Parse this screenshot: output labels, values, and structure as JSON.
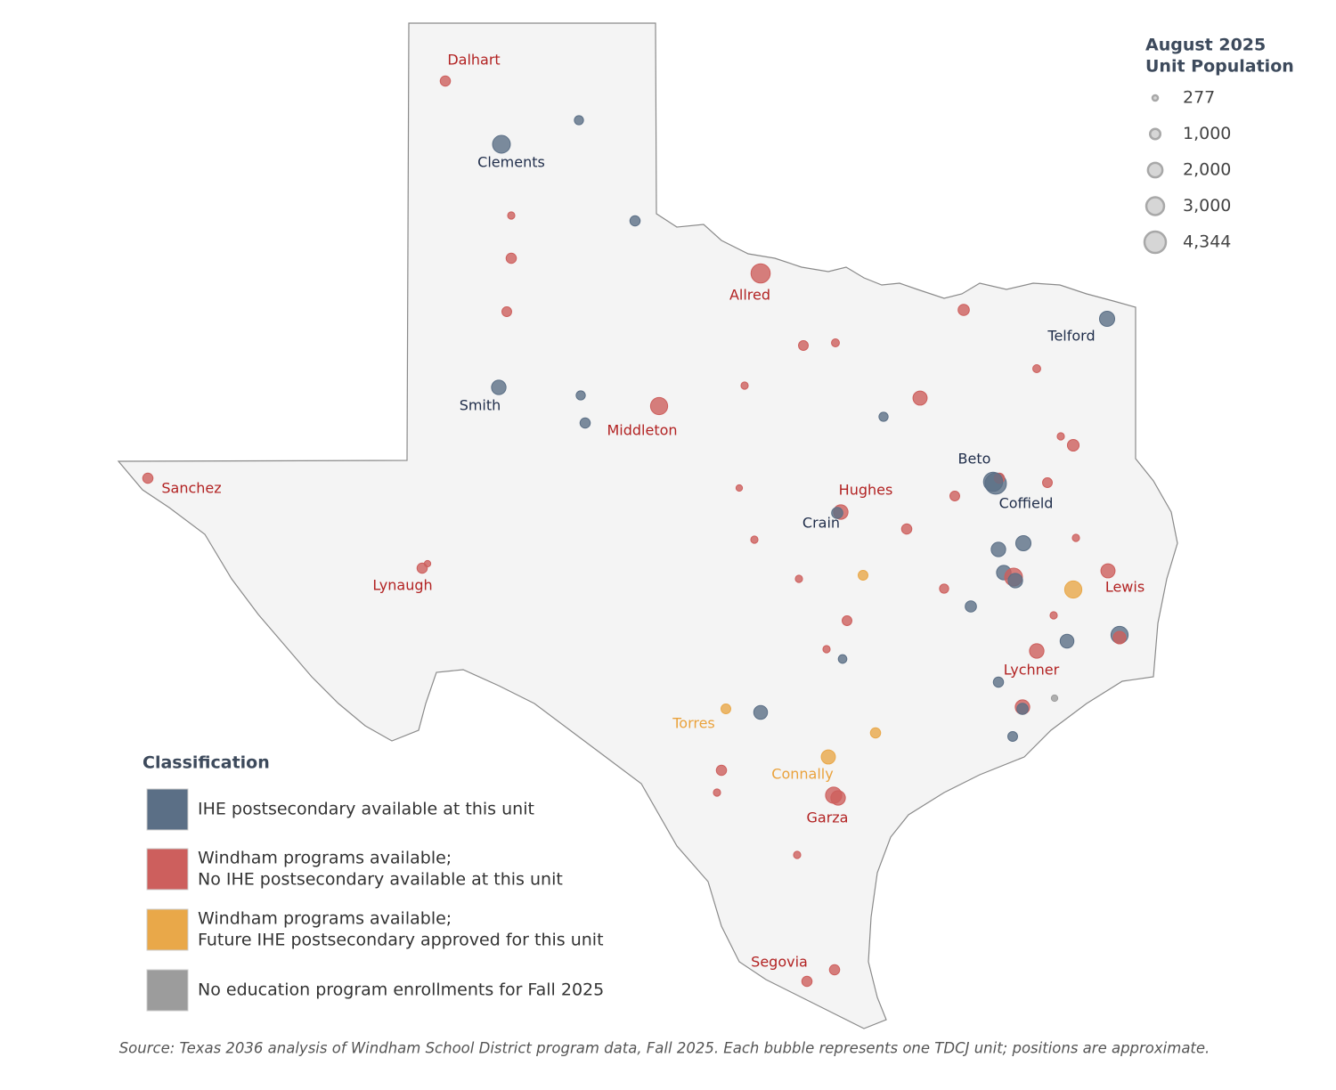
{
  "size_legend": {
    "title_lines": [
      "August 2025",
      "Unit Population"
    ],
    "sizes": [
      277,
      {
        "value": 1000,
        "label": "1,000"
      },
      {
        "value": 2000,
        "label": "2,000"
      },
      {
        "value": 3000,
        "label": "3,000"
      },
      {
        "value": 4344,
        "label": "4,344"
      }
    ]
  },
  "classification": {
    "title": "Classification",
    "items": [
      {
        "lines": [
          "IHE postsecondary available at this unit"
        ],
        "color": "#5b6f86",
        "label_color": "#1f2d4a"
      },
      {
        "lines": [
          "Windham programs available;",
          "No IHE postsecondary available at this unit"
        ],
        "color": "#cd5f5d",
        "label_color": "#b22222"
      },
      {
        "lines": [
          "Windham programs available;",
          "Future IHE postsecondary approved for this unit"
        ],
        "color": "#e9a849",
        "label_color": "#eaa23c"
      },
      {
        "lines": [
          "No education program enrollments for Fall 2025"
        ],
        "color": "#9c9c9c",
        "label_color": "#777777"
      }
    ]
  },
  "units": [
    {
      "label": "Dalhart",
      "class": 1,
      "population": 1000
    },
    {
      "class": 0,
      "population": 800
    },
    {
      "label": "Clements",
      "class": 0,
      "population": 3000
    },
    {
      "class": 1,
      "population": 500
    },
    {
      "class": 1,
      "population": 1000
    },
    {
      "class": 1,
      "population": 900
    },
    {
      "class": 0,
      "population": 1000
    },
    {
      "label": "Allred",
      "class": 1,
      "population": 3500
    },
    {
      "class": 1,
      "population": 1200
    },
    {
      "label": "Telford",
      "class": 0,
      "population": 2200
    },
    {
      "class": 1,
      "population": 900
    },
    {
      "class": 1,
      "population": 600
    },
    {
      "class": 1,
      "population": 600
    },
    {
      "label": "Smith",
      "class": 0,
      "population": 2000
    },
    {
      "class": 0,
      "population": 800
    },
    {
      "class": 1,
      "population": 500
    },
    {
      "class": 0,
      "population": 1000
    },
    {
      "label": "Middleton",
      "class": 1,
      "population": 2800
    },
    {
      "class": 1,
      "population": 1900
    },
    {
      "class": 0,
      "population": 800
    },
    {
      "class": 1,
      "population": 500
    },
    {
      "class": 1,
      "population": 1300
    },
    {
      "label": "Sanchez",
      "class": 1,
      "population": 1000
    },
    {
      "label": "Beto",
      "class": 0,
      "population": 4300
    },
    {
      "class": 1,
      "population": 1000
    },
    {
      "class": 1,
      "population": 900
    },
    {
      "label": "Coffield",
      "class": 0,
      "population": 3500
    },
    {
      "class": 1,
      "population": 900
    },
    {
      "class": 1,
      "population": 400
    },
    {
      "label": "Hughes",
      "class": 1,
      "population": 2000
    },
    {
      "label": "Crain",
      "class": 0,
      "population": 1200
    },
    {
      "class": 1,
      "population": 1000
    },
    {
      "class": 1,
      "population": 500
    },
    {
      "class": 0,
      "population": 2000
    },
    {
      "class": 0,
      "population": 2200
    },
    {
      "class": 1,
      "population": 500
    },
    {
      "label": "Lynaugh",
      "class": 1,
      "population": 1000
    },
    {
      "class": 1,
      "population": 400
    },
    {
      "class": 2,
      "population": 900
    },
    {
      "class": 1,
      "population": 500
    },
    {
      "class": 0,
      "population": 2000
    },
    {
      "class": 1,
      "population": 3000
    },
    {
      "class": 0,
      "population": 2000
    },
    {
      "label": "Lewis",
      "class": 1,
      "population": 1900
    },
    {
      "class": 2,
      "population": 2800
    },
    {
      "class": 1,
      "population": 800
    },
    {
      "class": 0,
      "population": 1200
    },
    {
      "class": 1,
      "population": 500
    },
    {
      "class": 1,
      "population": 900
    },
    {
      "class": 0,
      "population": 1800
    },
    {
      "class": 0,
      "population": 2800
    },
    {
      "class": 1,
      "population": 1500
    },
    {
      "label": "Lychner",
      "class": 1,
      "population": 2000
    },
    {
      "class": 1,
      "population": 500
    },
    {
      "class": 0,
      "population": 700
    },
    {
      "class": 0,
      "population": 1000
    },
    {
      "class": 3,
      "population": 400
    },
    {
      "class": 1,
      "population": 2000
    },
    {
      "class": 0,
      "population": 1200
    },
    {
      "label": "Torres",
      "class": 2,
      "population": 900
    },
    {
      "class": 0,
      "population": 1800
    },
    {
      "class": 2,
      "population": 1000
    },
    {
      "class": 0,
      "population": 900
    },
    {
      "label": "Connally",
      "class": 2,
      "population": 1900
    },
    {
      "class": 1,
      "population": 1000
    },
    {
      "class": 1,
      "population": 500
    },
    {
      "label": "Garza",
      "class": 1,
      "population": 2500
    },
    {
      "class": 1,
      "population": 2000
    },
    {
      "class": 1,
      "population": 500
    },
    {
      "label": "Segovia",
      "class": 1,
      "population": 1000
    },
    {
      "class": 1,
      "population": 1000
    }
  ],
  "source": "Source: Texas 2036 analysis of Windham School District program data, Fall 2025. Each bubble represents one TDCJ unit; positions are approximate."
}
